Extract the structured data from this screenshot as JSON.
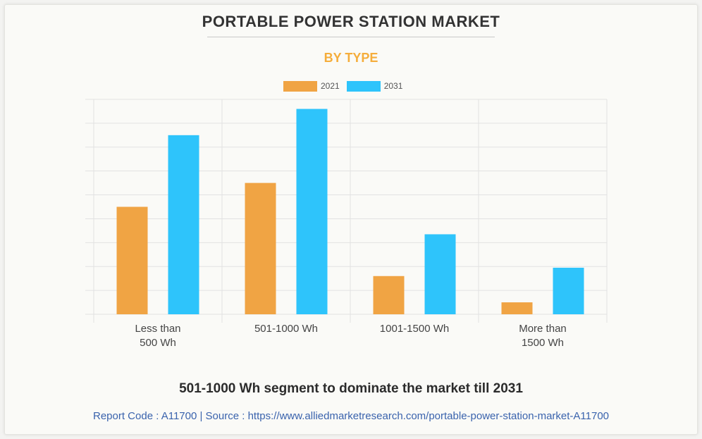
{
  "header": {
    "title": "PORTABLE POWER STATION MARKET",
    "subtitle": "BY TYPE"
  },
  "colors": {
    "accent_orange": "#f5ad3b",
    "series_2021": "#f0a444",
    "series_2031": "#2ec4fb",
    "grid": "#e2e2e2",
    "link": "#3a63ad"
  },
  "chart_data": {
    "type": "bar",
    "title": "PORTABLE POWER STATION MARKET",
    "subtitle": "BY TYPE",
    "categories": [
      [
        "Less than",
        "500 Wh"
      ],
      [
        "501-1000 Wh"
      ],
      [
        "1001-1500 Wh"
      ],
      [
        "More than",
        "1500 Wh"
      ]
    ],
    "series": [
      {
        "name": "2021",
        "values": [
          4.5,
          5.5,
          1.6,
          0.5
        ]
      },
      {
        "name": "2031",
        "values": [
          7.5,
          8.6,
          3.35,
          1.95
        ]
      }
    ],
    "ylim": [
      0,
      9
    ],
    "y_ticks_shown": false,
    "grid": true,
    "legend_position": "top-center",
    "xlabel": "",
    "ylabel": ""
  },
  "footer": {
    "heading": "501-1000 Wh segment to dominate the market till 2031",
    "source": "Report Code : A11700  |  Source : https://www.alliedmarketresearch.com/portable-power-station-market-A11700"
  }
}
